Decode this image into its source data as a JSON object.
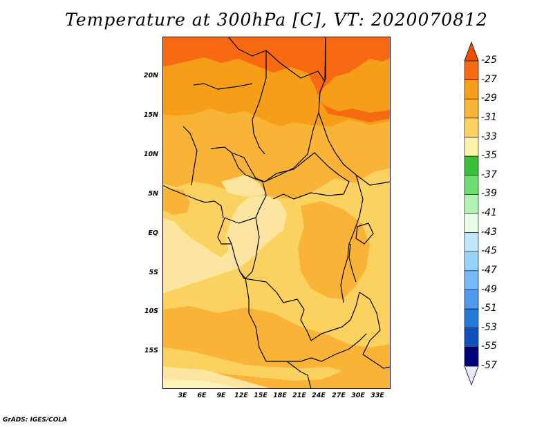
{
  "title": "Temperature at 300hPa [C], VT: 2020070812",
  "credit": "GrADS: IGES/COLA",
  "y_axis_labels": [
    "20N",
    "15N",
    "10N",
    "5N",
    "EQ",
    "5S",
    "10S",
    "15S"
  ],
  "x_axis_labels": [
    "3E",
    "6E",
    "9E",
    "12E",
    "15E",
    "18E",
    "21E",
    "24E",
    "27E",
    "30E",
    "33E"
  ],
  "colorbar": {
    "labels": [
      "-25",
      "-27",
      "-29",
      "-31",
      "-33",
      "-35",
      "-37",
      "-39",
      "-41",
      "-43",
      "-45",
      "-47",
      "-49",
      "-51",
      "-53",
      "-55",
      "-57"
    ],
    "top_arrow_color": "#ee5000",
    "bottom_arrow_color": "#e8e8ff",
    "colors": [
      "#f76a12",
      "#f79e18",
      "#f9b438",
      "#fbd260",
      "#fdf0a8",
      "#38c038",
      "#6edc6e",
      "#b2f2b2",
      "#e8fce8",
      "#bee6fc",
      "#96d2fa",
      "#78b8f4",
      "#5099ec",
      "#2878dc",
      "#1050bf",
      "#000078"
    ]
  },
  "field_colors": {
    "c_m25": "#f76a12",
    "c_m27": "#f79e18",
    "c_m29": "#f9b438",
    "c_m31": "#fbd260",
    "c_m33": "#fde4a0",
    "c_m35": "#fdf3b8",
    "border": "#000000"
  }
}
